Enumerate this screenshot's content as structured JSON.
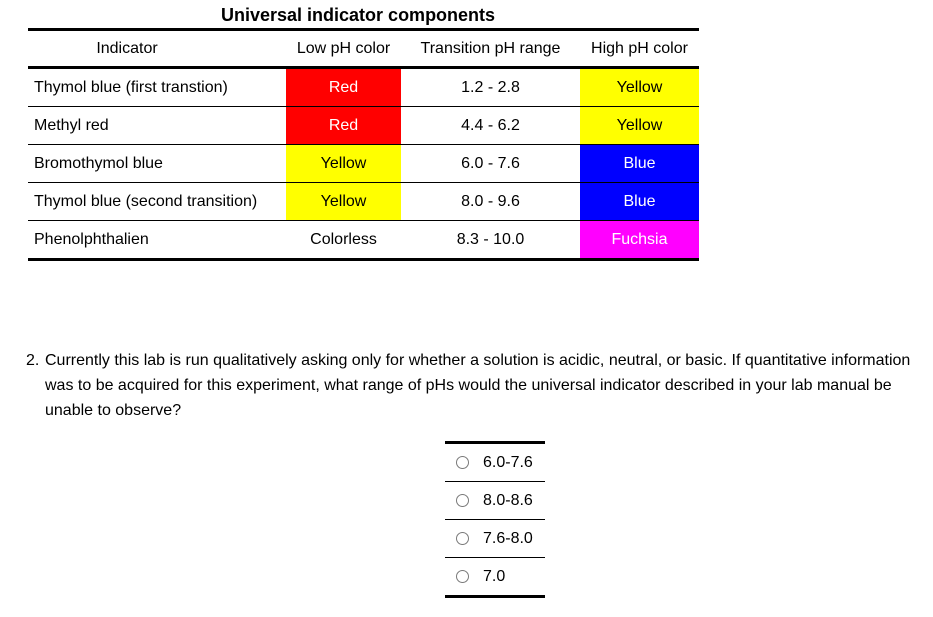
{
  "title": "Universal indicator components",
  "table": {
    "headers": [
      "Indicator",
      "Low pH color",
      "Transition pH range",
      "High pH color"
    ],
    "rows": [
      {
        "name": "Thymol blue (first transtion)",
        "low": "Red",
        "range": "1.2 - 2.8",
        "high": "Yellow"
      },
      {
        "name": "Methyl red",
        "low": "Red",
        "range": "4.4 - 6.2",
        "high": "Yellow"
      },
      {
        "name": "Bromothymol blue",
        "low": "Yellow",
        "range": "6.0 - 7.6",
        "high": "Blue"
      },
      {
        "name": "Thymol blue (second transition)",
        "low": "Yellow",
        "range": "8.0 - 9.6",
        "high": "Blue"
      },
      {
        "name": "Phenolphthalien",
        "low": "Colorless",
        "range": "8.3 - 10.0",
        "high": "Fuchsia"
      }
    ]
  },
  "colors": {
    "red": "#ff0000",
    "yellow": "#ffff00",
    "blue": "#0000ff",
    "fuchsia": "#ff00ff"
  },
  "question": {
    "number": "2.",
    "text": "Currently this lab is run qualitatively asking only for whether a solution is acidic, neutral, or basic. If quantitative information was to be acquired for this experiment, what range of pHs would the universal indicator described in your lab manual be unable to observe?"
  },
  "choices": [
    "6.0-7.6",
    "8.0-8.6",
    "7.6-8.0",
    "7.0"
  ]
}
